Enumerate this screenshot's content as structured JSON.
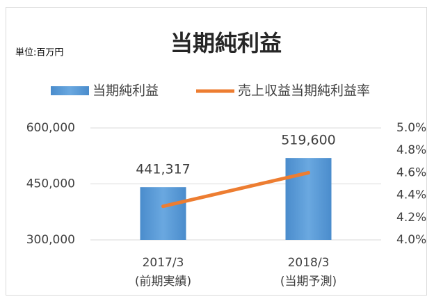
{
  "chart_data": {
    "type": "bar",
    "title": "当期純利益",
    "subtitle": "単位:百万円",
    "categories": [
      [
        "2017/3",
        "(前期実績)"
      ],
      [
        "2018/3",
        "(当期予測)"
      ]
    ],
    "series": [
      {
        "name": "当期純利益",
        "type": "bar",
        "color": "#5b9bd5",
        "values": [
          441317,
          519600
        ],
        "value_labels": [
          "441,317",
          "519,600"
        ]
      },
      {
        "name": "売上収益当期純利益率",
        "type": "line",
        "color": "#ed7d31",
        "axis": "y2",
        "values": [
          4.3,
          4.6
        ]
      }
    ],
    "ylim": [
      300000,
      600000
    ],
    "yticks": [
      {
        "value": 300000,
        "label": "300,000"
      },
      {
        "value": 450000,
        "label": "450,000"
      },
      {
        "value": 600000,
        "label": "600,000"
      }
    ],
    "y2lim": [
      4.0,
      5.0
    ],
    "y2ticks": [
      {
        "value": 4.0,
        "label": "4.0%"
      },
      {
        "value": 4.2,
        "label": "4.2%"
      },
      {
        "value": 4.4,
        "label": "4.4%"
      },
      {
        "value": 4.6,
        "label": "4.6%"
      },
      {
        "value": 4.8,
        "label": "4.8%"
      },
      {
        "value": 5.0,
        "label": "5.0%"
      }
    ],
    "grid": true,
    "legend": "top"
  }
}
